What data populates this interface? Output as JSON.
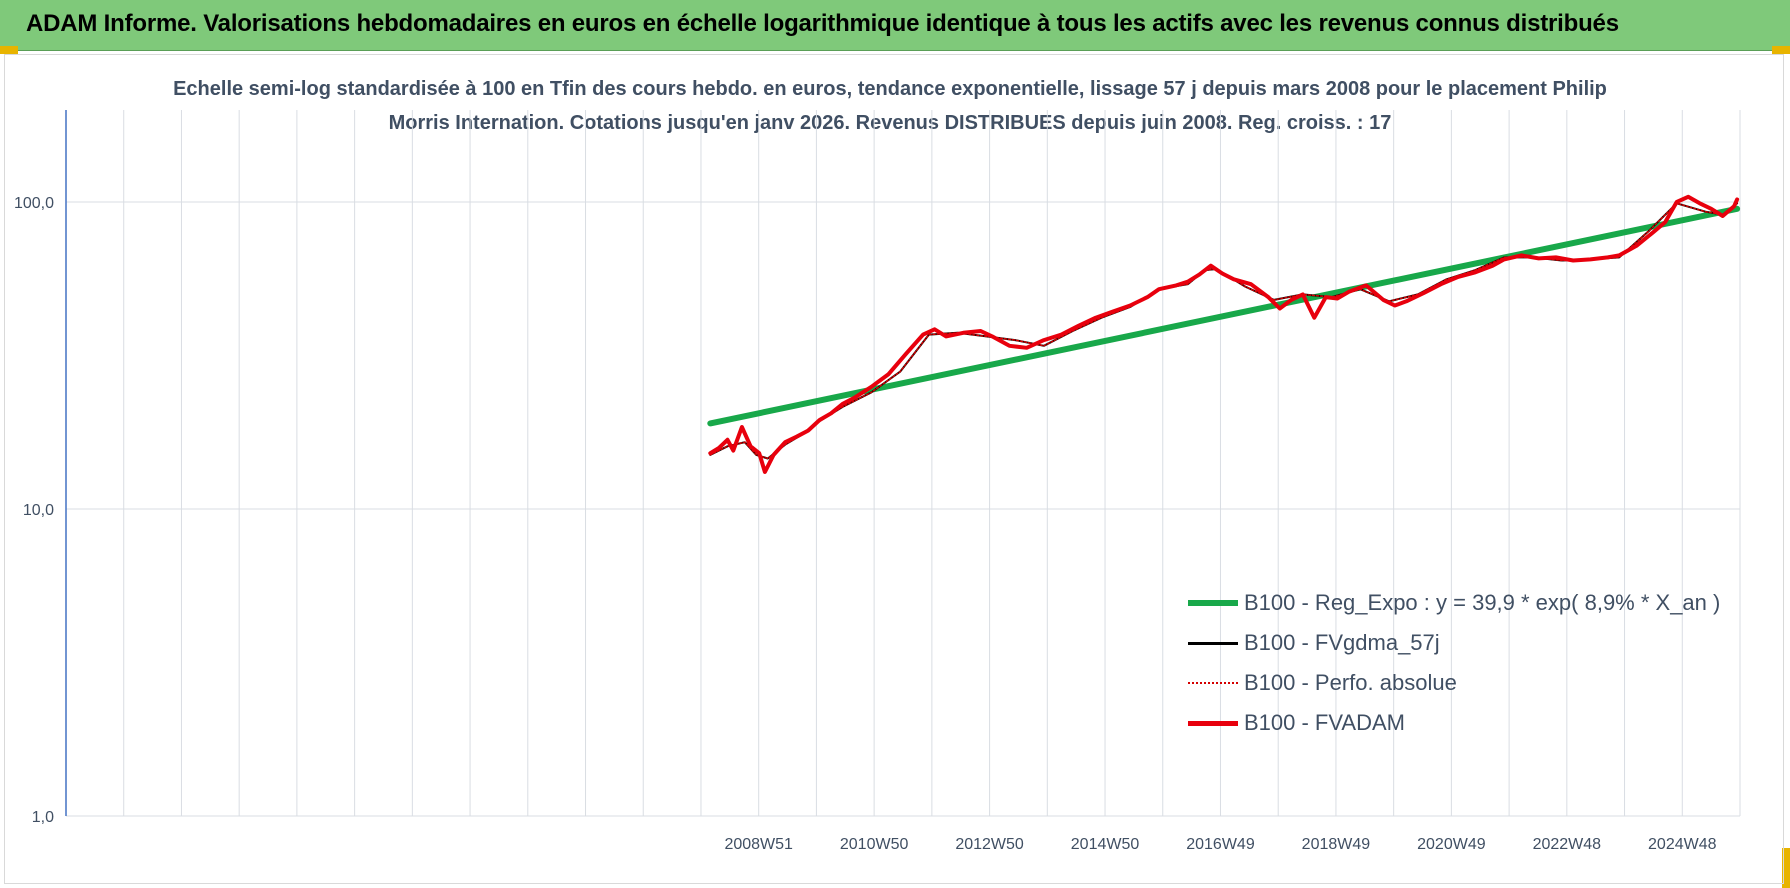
{
  "banner": {
    "title": "ADAM Informe. Valorisations hebdomadaires en euros en échelle logarithmique identique à tous les actifs avec les revenus connus distribués"
  },
  "chart_data": {
    "type": "line",
    "title": "Echelle semi-log standardisée à 100 en Tfin des cours hebdo. en euros, tendance exponentielle, lissage 57 j depuis mars 2008 pour le placement Philip Morris Internation. Cotations jusqu'en janv 2026. Revenus DISTRIBUES depuis juin 2008. Reg. croiss. : 17",
    "y_scale": "log",
    "ylim": [
      1,
      100
    ],
    "y_ticks": [
      "100,0",
      "10,0",
      "1,0"
    ],
    "x_ticks": [
      "2008W51",
      "2010W50",
      "2012W50",
      "2014W50",
      "2016W49",
      "2018W49",
      "2020W49",
      "2022W48",
      "2024W48"
    ],
    "x_range": [
      1997.0,
      2026.1
    ],
    "grid": true,
    "legend_position": "bottom-right",
    "colors": {
      "reg": "#18a84a",
      "fvgdma": "#000000",
      "perfo": "#d40000",
      "fvadam": "#e8000d",
      "grid": "#d9dde3",
      "axis_text": "#404f63"
    },
    "series": [
      {
        "name": "B100 - Reg_Expo : y = 39,9 * exp( 8,9% *  X_an )",
        "key": "reg",
        "x": [
          2008.2,
          2026.05
        ],
        "values": [
          19.0,
          95.0
        ]
      },
      {
        "name": "B100 - FVgdma_57j",
        "key": "fvgdma",
        "x": [
          2008.2,
          2008.5,
          2008.8,
          2009.0,
          2009.2,
          2009.5,
          2009.8,
          2010.0,
          2010.5,
          2011.0,
          2011.5,
          2012.0,
          2012.5,
          2013.0,
          2013.5,
          2014.0,
          2014.5,
          2015.0,
          2015.5,
          2016.0,
          2016.5,
          2016.8,
          2017.0,
          2017.5,
          2018.0,
          2018.5,
          2019.0,
          2019.5,
          2020.0,
          2020.5,
          2021.0,
          2021.5,
          2022.0,
          2022.5,
          2023.0,
          2023.5,
          2024.0,
          2024.5,
          2025.0,
          2025.5,
          2025.8,
          2026.05
        ],
        "values": [
          15.0,
          16.0,
          16.5,
          15.0,
          14.6,
          16.2,
          17.5,
          18.8,
          21.5,
          24.0,
          28.0,
          37.0,
          37.5,
          36.5,
          35.5,
          34.0,
          38.0,
          42.0,
          45.5,
          52.0,
          54.0,
          60.0,
          60.5,
          53.0,
          48.0,
          50.0,
          49.0,
          52.0,
          47.5,
          50.0,
          56.0,
          60.0,
          66.0,
          66.0,
          64.5,
          65.0,
          66.0,
          80.0,
          99.0,
          93.0,
          91.0,
          99.0
        ]
      },
      {
        "name": "B100 - Perfo. absolue",
        "key": "perfo",
        "x": [
          2008.2,
          2008.5,
          2008.8,
          2009.0,
          2009.2,
          2009.5,
          2009.8,
          2010.0,
          2010.5,
          2011.0,
          2011.5,
          2012.0,
          2012.5,
          2013.0,
          2013.5,
          2014.0,
          2014.5,
          2015.0,
          2015.5,
          2016.0,
          2016.5,
          2016.8,
          2017.0,
          2017.5,
          2018.0,
          2018.5,
          2019.0,
          2019.5,
          2020.0,
          2020.5,
          2021.0,
          2021.5,
          2022.0,
          2022.5,
          2023.0,
          2023.5,
          2024.0,
          2024.5,
          2025.0,
          2025.5,
          2025.8,
          2026.05
        ],
        "values": [
          15.0,
          16.0,
          16.5,
          15.0,
          14.6,
          16.2,
          17.5,
          18.8,
          21.5,
          24.0,
          28.0,
          37.0,
          37.5,
          36.5,
          35.5,
          34.0,
          38.0,
          42.0,
          45.5,
          52.0,
          54.0,
          60.0,
          60.5,
          53.0,
          48.0,
          50.0,
          49.0,
          52.0,
          47.5,
          50.0,
          56.0,
          60.0,
          66.0,
          66.0,
          64.5,
          65.0,
          66.0,
          80.0,
          99.0,
          93.0,
          91.0,
          99.0
        ]
      },
      {
        "name": "B100 - FVADAM",
        "key": "fvadam",
        "x": [
          2008.2,
          2008.35,
          2008.5,
          2008.6,
          2008.75,
          2008.9,
          2009.05,
          2009.15,
          2009.3,
          2009.5,
          2009.7,
          2009.9,
          2010.1,
          2010.3,
          2010.5,
          2010.7,
          2011.0,
          2011.3,
          2011.6,
          2011.9,
          2012.1,
          2012.3,
          2012.6,
          2012.9,
          2013.1,
          2013.4,
          2013.7,
          2014.0,
          2014.3,
          2014.6,
          2014.9,
          2015.2,
          2015.5,
          2015.8,
          2016.0,
          2016.3,
          2016.5,
          2016.7,
          2016.9,
          2017.1,
          2017.3,
          2017.6,
          2017.9,
          2018.1,
          2018.3,
          2018.5,
          2018.7,
          2018.9,
          2019.1,
          2019.3,
          2019.6,
          2019.9,
          2020.1,
          2020.3,
          2020.6,
          2020.9,
          2021.2,
          2021.5,
          2021.8,
          2022.0,
          2022.3,
          2022.6,
          2022.9,
          2023.2,
          2023.5,
          2023.8,
          2024.0,
          2024.3,
          2024.6,
          2024.8,
          2025.0,
          2025.2,
          2025.4,
          2025.6,
          2025.8,
          2026.0,
          2026.05
        ],
        "values": [
          15.2,
          15.8,
          16.8,
          15.5,
          18.5,
          16.0,
          15.2,
          13.2,
          15.0,
          16.5,
          17.2,
          18.0,
          19.5,
          20.5,
          22.0,
          23.0,
          25.0,
          27.5,
          32.0,
          37.0,
          38.5,
          36.5,
          37.5,
          38.0,
          36.5,
          34.0,
          33.5,
          35.5,
          37.0,
          39.5,
          42.0,
          44.0,
          46.0,
          49.0,
          52.0,
          53.5,
          55.0,
          58.0,
          62.0,
          58.5,
          56.0,
          54.0,
          49.0,
          45.0,
          48.0,
          50.0,
          42.0,
          49.0,
          48.5,
          51.0,
          53.5,
          48.0,
          46.0,
          47.5,
          50.5,
          54.0,
          57.0,
          59.0,
          62.0,
          65.0,
          67.0,
          65.5,
          66.0,
          64.5,
          65.0,
          66.0,
          67.0,
          72.0,
          80.0,
          86.0,
          100.0,
          104.0,
          99.0,
          95.0,
          90.0,
          97.0,
          102.0
        ]
      }
    ]
  }
}
